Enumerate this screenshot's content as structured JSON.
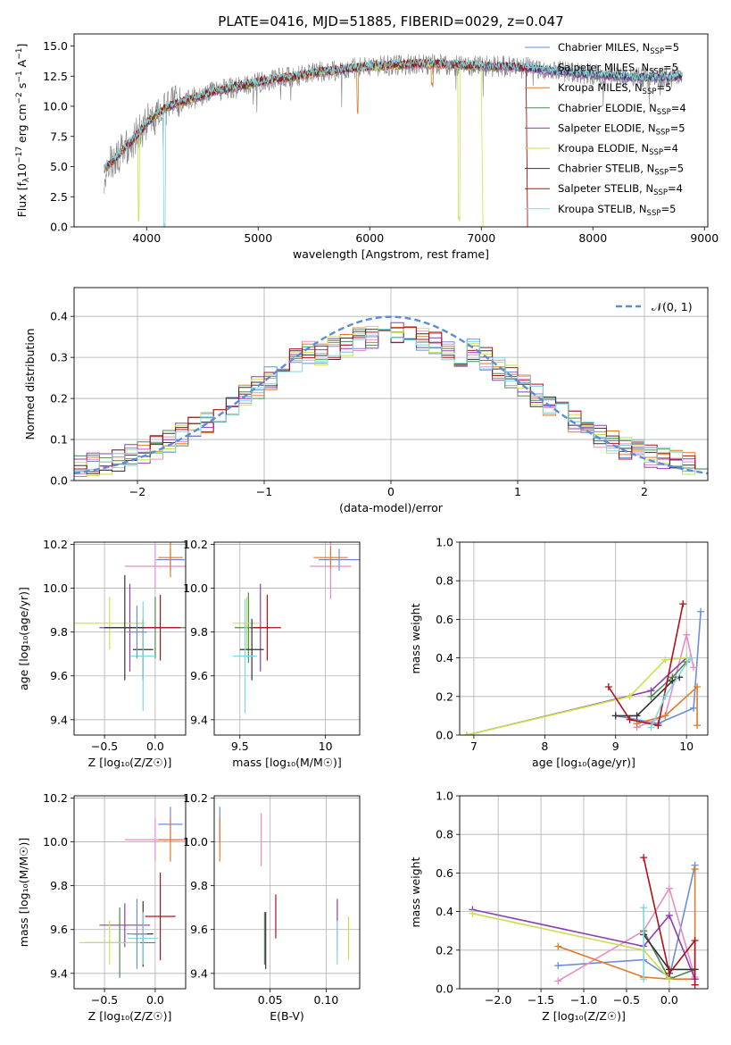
{
  "chart_data": [
    {
      "id": "spectrum",
      "type": "line",
      "title": "PLATE=0416, MJD=51885, FIBERID=0029, z=0.047",
      "xlabel": "wavelength [Angstrom, rest frame]",
      "ylabel_parts": [
        "Flux [f",
        "λ",
        "10",
        "−17",
        " erg cm",
        "−2",
        " s",
        "−1",
        " A",
        "−1",
        "]"
      ],
      "xlim": [
        3350,
        9030
      ],
      "ylim": [
        0,
        16
      ],
      "xticks": [
        4000,
        5000,
        6000,
        7000,
        8000,
        9000
      ],
      "yticks": [
        0.0,
        2.5,
        5.0,
        7.5,
        10.0,
        12.5,
        15.0
      ],
      "legend_position": "upper right",
      "legend": [
        {
          "base": "Chabrier MILES, N",
          "sub": "SSP",
          "tail": "=5",
          "color": "#6a8fd8"
        },
        {
          "base": "Salpeter MILES, N",
          "sub": "SSP",
          "tail": "=5",
          "color": "#e88dc4"
        },
        {
          "base": "Kroupa MILES, N",
          "sub": "SSP",
          "tail": "=5",
          "color": "#e07b2a"
        },
        {
          "base": "Chabrier ELODIE, N",
          "sub": "SSP",
          "tail": "=4",
          "color": "#4f8a4f"
        },
        {
          "base": "Salpeter ELODIE, N",
          "sub": "SSP",
          "tail": "=5",
          "color": "#8e3db5"
        },
        {
          "base": "Kroupa ELODIE, N",
          "sub": "SSP",
          "tail": "=4",
          "color": "#c9e04a"
        },
        {
          "base": "Chabrier STELIB, N",
          "sub": "SSP",
          "tail": "=5",
          "color": "#333333"
        },
        {
          "base": "Salpeter STELIB, N",
          "sub": "SSP",
          "tail": "=4",
          "color": "#b0101a"
        },
        {
          "base": "Kroupa STELIB, N",
          "sub": "SSP",
          "tail": "=5",
          "color": "#7fd8e0"
        }
      ],
      "data_color": "#808080",
      "continuum": {
        "x": [
          3620,
          3700,
          3800,
          3900,
          4000,
          4100,
          4200,
          4300,
          4400,
          4600,
          4800,
          5000,
          5200,
          5400,
          5600,
          5800,
          6000,
          6200,
          6400,
          6600,
          6800,
          7000,
          7200,
          7400,
          7600,
          7800,
          8000,
          8200,
          8400,
          8600,
          8800
        ],
        "y": [
          4.8,
          5.5,
          6.5,
          7.4,
          8.6,
          9.4,
          10.0,
          10.3,
          10.6,
          11.2,
          11.6,
          12.0,
          12.3,
          12.6,
          12.9,
          13.1,
          13.3,
          13.4,
          13.5,
          13.5,
          13.4,
          13.3,
          13.3,
          13.2,
          13.0,
          12.8,
          12.6,
          12.5,
          12.4,
          12.4,
          12.5
        ]
      },
      "absorption_features": [
        {
          "x": 4160,
          "depth": 10.0,
          "series": 8
        },
        {
          "x": 6800,
          "depth": 13.0,
          "series": 5
        },
        {
          "x": 3930,
          "depth": 7.0,
          "series": 5
        },
        {
          "x": 5890,
          "depth": 3.5,
          "series": 2
        },
        {
          "x": 6560,
          "depth": 1.8,
          "series": 2
        }
      ],
      "model_end": [
        {
          "series": 7,
          "x": 7400
        },
        {
          "series": 2,
          "x": 7400
        },
        {
          "series": 5,
          "x": 7000
        }
      ]
    },
    {
      "id": "residuals",
      "type": "line",
      "xlabel": "(data-model)/error",
      "ylabel": "Normed distribution",
      "xlim": [
        -2.5,
        2.5
      ],
      "ylim": [
        0,
        0.47
      ],
      "xticks": [
        -2,
        -1,
        0,
        1,
        2
      ],
      "xtick_labels": [
        "−2",
        "−1",
        "0",
        "1",
        "2"
      ],
      "yticks": [
        0.0,
        0.1,
        0.2,
        0.3,
        0.4
      ],
      "grid": true,
      "legend_position": "upper right",
      "legend": [
        {
          "label": "𝒩(0, 1)",
          "color": "#5b8bd9",
          "style": "dashed"
        }
      ],
      "bin_width": 0.1
    },
    {
      "id": "z-age",
      "type": "scatter",
      "xlabel": "Z [log₁₀(Z/Z☉)]",
      "ylabel": "age  [log₁₀(age/yr)]",
      "xlim": [
        -0.8,
        0.3
      ],
      "ylim": [
        9.33,
        10.21
      ],
      "xticks": [
        -0.5,
        0.0
      ],
      "xtick_labels": [
        "−0.5",
        "0.0"
      ],
      "yticks": [
        9.4,
        9.6,
        9.8,
        10.0,
        10.2
      ],
      "grid": true,
      "points": [
        {
          "x": 0.15,
          "y": 10.13,
          "xerr": 0.14,
          "yerr": 0.05,
          "c": 0
        },
        {
          "x": 0.0,
          "y": 10.1,
          "xerr": 0.3,
          "yerr": 0.1,
          "c": 1
        },
        {
          "x": 0.15,
          "y": 10.14,
          "xerr": 0.12,
          "yerr": 0.09,
          "c": 2
        },
        {
          "x": 0.0,
          "y": 9.82,
          "xerr": 0.5,
          "yerr": 0.14,
          "c": 3
        },
        {
          "x": -0.25,
          "y": 9.82,
          "xerr": 0.3,
          "yerr": 0.2,
          "c": 4
        },
        {
          "x": -0.45,
          "y": 9.84,
          "xerr": 0.35,
          "yerr": 0.12,
          "c": 5
        },
        {
          "x": -0.12,
          "y": 9.72,
          "xerr": 0.1,
          "yerr": 0.14,
          "c": 6
        },
        {
          "x": 0.05,
          "y": 9.82,
          "xerr": 0.2,
          "yerr": 0.15,
          "c": 7
        },
        {
          "x": -0.12,
          "y": 9.69,
          "xerr": 0.12,
          "yerr": 0.25,
          "c": 8
        },
        {
          "x": -0.3,
          "y": 9.82,
          "xerr": 0.2,
          "yerr": 0.24,
          "c": 6
        },
        {
          "x": -0.18,
          "y": 9.8,
          "xerr": 0.1,
          "yerr": 0.12,
          "c": 0
        }
      ]
    },
    {
      "id": "mass-age",
      "type": "scatter",
      "xlabel": "mass [log₁₀(M/M☉)]",
      "xlim": [
        9.35,
        10.2
      ],
      "ylim": [
        9.33,
        10.21
      ],
      "xticks": [
        9.5,
        10.0
      ],
      "yticks": [
        9.4,
        9.6,
        9.8,
        10.0,
        10.2
      ],
      "grid": true,
      "points": [
        {
          "x": 10.08,
          "y": 10.13,
          "xerr": 0.12,
          "yerr": 0.05,
          "c": 0
        },
        {
          "x": 10.03,
          "y": 10.1,
          "xerr": 0.12,
          "yerr": 0.15,
          "c": 1
        },
        {
          "x": 10.03,
          "y": 10.14,
          "xerr": 0.1,
          "yerr": 0.05,
          "c": 2
        },
        {
          "x": 9.55,
          "y": 9.82,
          "xerr": 0.08,
          "yerr": 0.16,
          "c": 3
        },
        {
          "x": 9.62,
          "y": 9.82,
          "xerr": 0.06,
          "yerr": 0.2,
          "c": 4
        },
        {
          "x": 9.54,
          "y": 9.84,
          "xerr": 0.08,
          "yerr": 0.12,
          "c": 5
        },
        {
          "x": 9.57,
          "y": 9.72,
          "xerr": 0.07,
          "yerr": 0.14,
          "c": 6
        },
        {
          "x": 9.66,
          "y": 9.82,
          "xerr": 0.08,
          "yerr": 0.15,
          "c": 7
        },
        {
          "x": 9.53,
          "y": 9.69,
          "xerr": 0.07,
          "yerr": 0.26,
          "c": 8
        }
      ]
    },
    {
      "id": "age-weight",
      "type": "line",
      "xlabel": "age  [log₁₀(age/yr)]",
      "ylabel": "mass weight",
      "xlim": [
        6.8,
        10.3
      ],
      "ylim": [
        0,
        1
      ],
      "xticks": [
        7,
        8,
        9,
        10
      ],
      "yticks": [
        0.0,
        0.2,
        0.4,
        0.6,
        0.8,
        1.0
      ],
      "grid": true,
      "series": [
        {
          "c": 0,
          "x": [
            9.0,
            9.6,
            10.1,
            10.2
          ],
          "y": [
            0.1,
            0.06,
            0.14,
            0.64
          ]
        },
        {
          "c": 1,
          "x": [
            9.3,
            9.7,
            10.0,
            10.1
          ],
          "y": [
            0.04,
            0.1,
            0.52,
            0.35
          ]
        },
        {
          "c": 2,
          "x": [
            9.3,
            9.7,
            10.15,
            10.15
          ],
          "y": [
            0.06,
            0.1,
            0.25,
            0.05
          ]
        },
        {
          "c": 3,
          "x": [
            9.5,
            9.8,
            10.0
          ],
          "y": [
            0.2,
            0.3,
            0.38
          ]
        },
        {
          "c": 4,
          "x": [
            6.9,
            9.5,
            10.0
          ],
          "y": [
            0.0,
            0.23,
            0.4
          ]
        },
        {
          "c": 5,
          "x": [
            6.9,
            9.2,
            9.7,
            10.0
          ],
          "y": [
            0.0,
            0.2,
            0.39,
            0.4
          ]
        },
        {
          "c": 6,
          "x": [
            9.0,
            9.3,
            9.8,
            9.9
          ],
          "y": [
            0.1,
            0.1,
            0.28,
            0.3
          ]
        },
        {
          "c": 7,
          "x": [
            8.9,
            9.2,
            9.6,
            9.95
          ],
          "y": [
            0.25,
            0.08,
            0.05,
            0.68
          ]
        },
        {
          "c": 8,
          "x": [
            9.5,
            9.7,
            10.05
          ],
          "y": [
            0.04,
            0.2,
            0.4
          ]
        }
      ]
    },
    {
      "id": "z-mass",
      "type": "scatter",
      "xlabel": "Z [log₁₀(Z/Z☉)]",
      "ylabel": "mass [log₁₀(M/M☉)]",
      "xlim": [
        -0.8,
        0.3
      ],
      "ylim": [
        9.33,
        10.21
      ],
      "xticks": [
        -0.5,
        0.0
      ],
      "xtick_labels": [
        "−0.5",
        "0.0"
      ],
      "yticks": [
        9.4,
        9.6,
        9.8,
        10.0,
        10.2
      ],
      "grid": true,
      "points": [
        {
          "x": 0.15,
          "y": 10.08,
          "xerr": 0.12,
          "yerr": 0.08,
          "c": 0
        },
        {
          "x": 0.0,
          "y": 10.01,
          "xerr": 0.3,
          "yerr": 0.1,
          "c": 1
        },
        {
          "x": 0.15,
          "y": 10.01,
          "xerr": 0.12,
          "yerr": 0.1,
          "c": 2
        },
        {
          "x": -0.35,
          "y": 9.54,
          "xerr": 0.35,
          "yerr": 0.16,
          "c": 3
        },
        {
          "x": -0.3,
          "y": 9.62,
          "xerr": 0.25,
          "yerr": 0.1,
          "c": 4
        },
        {
          "x": -0.45,
          "y": 9.54,
          "xerr": 0.3,
          "yerr": 0.1,
          "c": 5
        },
        {
          "x": -0.12,
          "y": 9.58,
          "xerr": 0.1,
          "yerr": 0.15,
          "c": 6
        },
        {
          "x": 0.05,
          "y": 9.66,
          "xerr": 0.15,
          "yerr": 0.2,
          "c": 7
        },
        {
          "x": -0.12,
          "y": 9.56,
          "xerr": 0.15,
          "yerr": 0.12,
          "c": 8
        },
        {
          "x": -0.18,
          "y": 9.58,
          "xerr": 0.1,
          "yerr": 0.16,
          "c": 0
        }
      ]
    },
    {
      "id": "ebv-mass",
      "type": "scatter",
      "xlabel": "E(B-V)",
      "xlim": [
        0.0,
        0.13
      ],
      "ylim": [
        9.33,
        10.21
      ],
      "xticks": [
        0.05,
        0.1
      ],
      "xtick_labels": [
        "0.05",
        "0.10"
      ],
      "yticks": [
        9.4,
        9.6,
        9.8,
        10.0,
        10.2
      ],
      "grid": true,
      "points": [
        {
          "x": 0.005,
          "y": 10.08,
          "yerr": 0.08,
          "c": 0
        },
        {
          "x": 0.042,
          "y": 10.01,
          "yerr": 0.12,
          "c": 1
        },
        {
          "x": 0.005,
          "y": 10.01,
          "yerr": 0.1,
          "c": 2
        },
        {
          "x": 0.045,
          "y": 9.56,
          "yerr": 0.12,
          "c": 3
        },
        {
          "x": 0.11,
          "y": 9.62,
          "yerr": 0.12,
          "c": 4
        },
        {
          "x": 0.12,
          "y": 9.56,
          "yerr": 0.1,
          "c": 5
        },
        {
          "x": 0.046,
          "y": 9.55,
          "yerr": 0.13,
          "c": 6
        },
        {
          "x": 0.055,
          "y": 9.66,
          "yerr": 0.1,
          "c": 7
        },
        {
          "x": 0.11,
          "y": 9.54,
          "yerr": 0.1,
          "c": 8
        }
      ]
    },
    {
      "id": "z-weight",
      "type": "line",
      "xlabel": "Z [log₁₀(Z/Z☉)]",
      "ylabel": "mass weight",
      "xlim": [
        -2.45,
        0.45
      ],
      "ylim": [
        0,
        1
      ],
      "xticks": [
        -2.0,
        -1.5,
        -1.0,
        -0.5,
        0.0
      ],
      "xtick_labels": [
        "−2.0",
        "−1.5",
        "−1.0",
        "−0.5",
        "0.0"
      ],
      "yticks": [
        0.0,
        0.2,
        0.4,
        0.6,
        0.8,
        1.0
      ],
      "grid": true,
      "series": [
        {
          "c": 0,
          "x": [
            -1.3,
            -0.3,
            0.0,
            0.3
          ],
          "y": [
            0.12,
            0.15,
            0.06,
            0.64
          ]
        },
        {
          "c": 1,
          "x": [
            -1.3,
            -0.3,
            0.0,
            0.3
          ],
          "y": [
            0.04,
            0.3,
            0.52,
            0.06
          ]
        },
        {
          "c": 2,
          "x": [
            -1.3,
            -0.3,
            0.0,
            0.3,
            0.3
          ],
          "y": [
            0.22,
            0.06,
            0.05,
            0.05,
            0.62
          ]
        },
        {
          "c": 3,
          "x": [
            -0.3,
            0.0,
            0.3
          ],
          "y": [
            0.3,
            0.05,
            0.1
          ]
        },
        {
          "c": 4,
          "x": [
            -2.3,
            -0.3,
            0.0,
            0.3
          ],
          "y": [
            0.41,
            0.22,
            0.38,
            0.05
          ]
        },
        {
          "c": 5,
          "x": [
            -2.3,
            -0.3,
            0.0
          ],
          "y": [
            0.39,
            0.2,
            0.05
          ]
        },
        {
          "c": 6,
          "x": [
            -0.3,
            0.0,
            0.3
          ],
          "y": [
            0.28,
            0.1,
            0.1
          ]
        },
        {
          "c": 7,
          "x": [
            -0.3,
            0.0,
            0.3,
            0.3
          ],
          "y": [
            0.68,
            0.08,
            0.25,
            0.02
          ]
        },
        {
          "c": 8,
          "x": [
            -0.3,
            -0.3
          ],
          "y": [
            0.05,
            0.42
          ]
        }
      ]
    }
  ]
}
